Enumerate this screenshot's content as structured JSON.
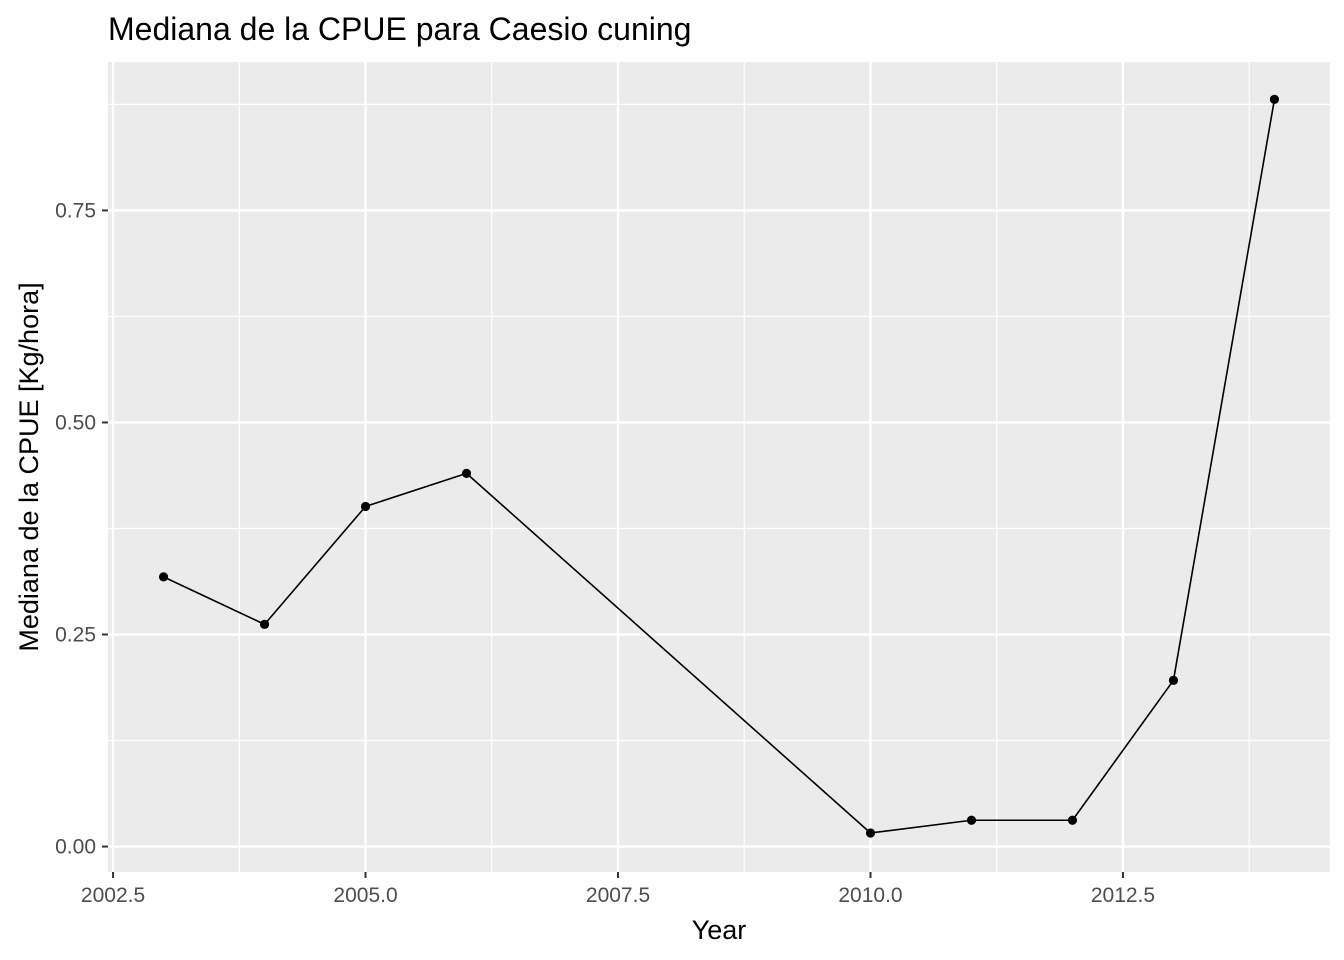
{
  "chart_data": {
    "type": "line",
    "title": "Mediana de la CPUE para Caesio cuning",
    "xlabel": "Year",
    "ylabel": "Mediana de la CPUE [Kg/hora]",
    "x": [
      2003,
      2004,
      2005,
      2006,
      2010,
      2011,
      2012,
      2013,
      2014
    ],
    "series": [
      {
        "values": [
          0.318,
          0.262,
          0.401,
          0.44,
          0.016,
          0.031,
          0.031,
          0.196,
          0.881
        ]
      }
    ],
    "xlim": [
      2002.45,
      2014.55
    ],
    "ylim": [
      -0.03,
      0.925
    ],
    "xticks": [
      2002.5,
      2005.0,
      2007.5,
      2010.0,
      2012.5
    ],
    "xtick_labels": [
      "2002.5",
      "2005.0",
      "2007.5",
      "2010.0",
      "2012.5"
    ],
    "yticks": [
      0.0,
      0.25,
      0.5,
      0.75
    ],
    "ytick_labels": [
      "0.00",
      "0.25",
      "0.50",
      "0.75"
    ],
    "grid": true,
    "legend": "none",
    "colors": {
      "panel_background": "#ebebeb",
      "grid": "#ffffff",
      "line": "#000000",
      "tick_text": "#4d4d4d",
      "axis_tick": "#333333"
    }
  }
}
